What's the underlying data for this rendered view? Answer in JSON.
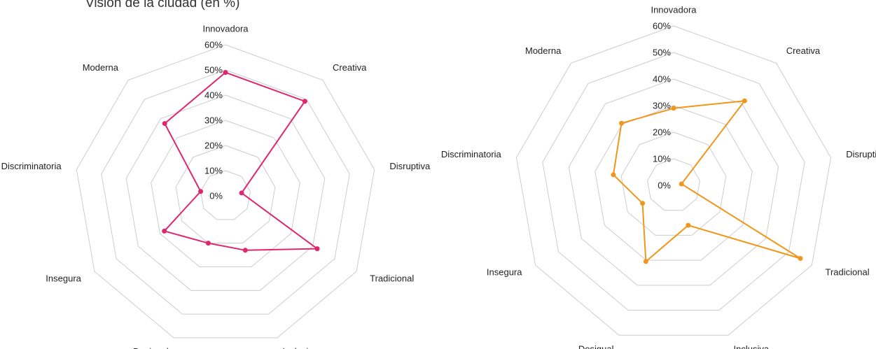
{
  "chart_data": [
    {
      "type": "radar",
      "title": "Visión de la ciudad (en %)",
      "categories": [
        "Innovadora",
        "Creativa",
        "Disruptiva",
        "Tradicional",
        "Inclusiva",
        "Desigual",
        "Insegura",
        "Discriminatoria",
        "Moderna"
      ],
      "series": [
        {
          "color": "#e0266f",
          "values": [
            49,
            49,
            6.5,
            42,
            23,
            20,
            28,
            10,
            37.5
          ]
        }
      ],
      "ylim": [
        0,
        60
      ],
      "yticks": [
        {
          "value": 0,
          "label": "0%"
        },
        {
          "value": 10,
          "label": "10%"
        },
        {
          "value": 20,
          "label": "20%"
        },
        {
          "value": 30,
          "label": "30%"
        },
        {
          "value": 40,
          "label": "40%"
        },
        {
          "value": 50,
          "label": "50%"
        },
        {
          "value": 60,
          "label": "60%"
        }
      ],
      "grid": true
    },
    {
      "type": "radar",
      "categories": [
        "Innovadora",
        "Creativa",
        "Disruptiva",
        "Tradicional",
        "Inclusiva",
        "Desigual",
        "Insegura",
        "Discriminatoria",
        "Moderna"
      ],
      "series": [
        {
          "color": "#f0961b",
          "values": [
            29,
            41.5,
            3,
            55,
            16,
            30.5,
            13.5,
            23,
            30.5
          ]
        }
      ],
      "ylim": [
        0,
        60
      ],
      "yticks": [
        {
          "value": 0,
          "label": "0%"
        },
        {
          "value": 10,
          "label": "10%"
        },
        {
          "value": 20,
          "label": "20%"
        },
        {
          "value": 30,
          "label": "30%"
        },
        {
          "value": 40,
          "label": "40%"
        },
        {
          "value": 50,
          "label": "50%"
        },
        {
          "value": 60,
          "label": "60%"
        }
      ],
      "grid": true
    }
  ]
}
